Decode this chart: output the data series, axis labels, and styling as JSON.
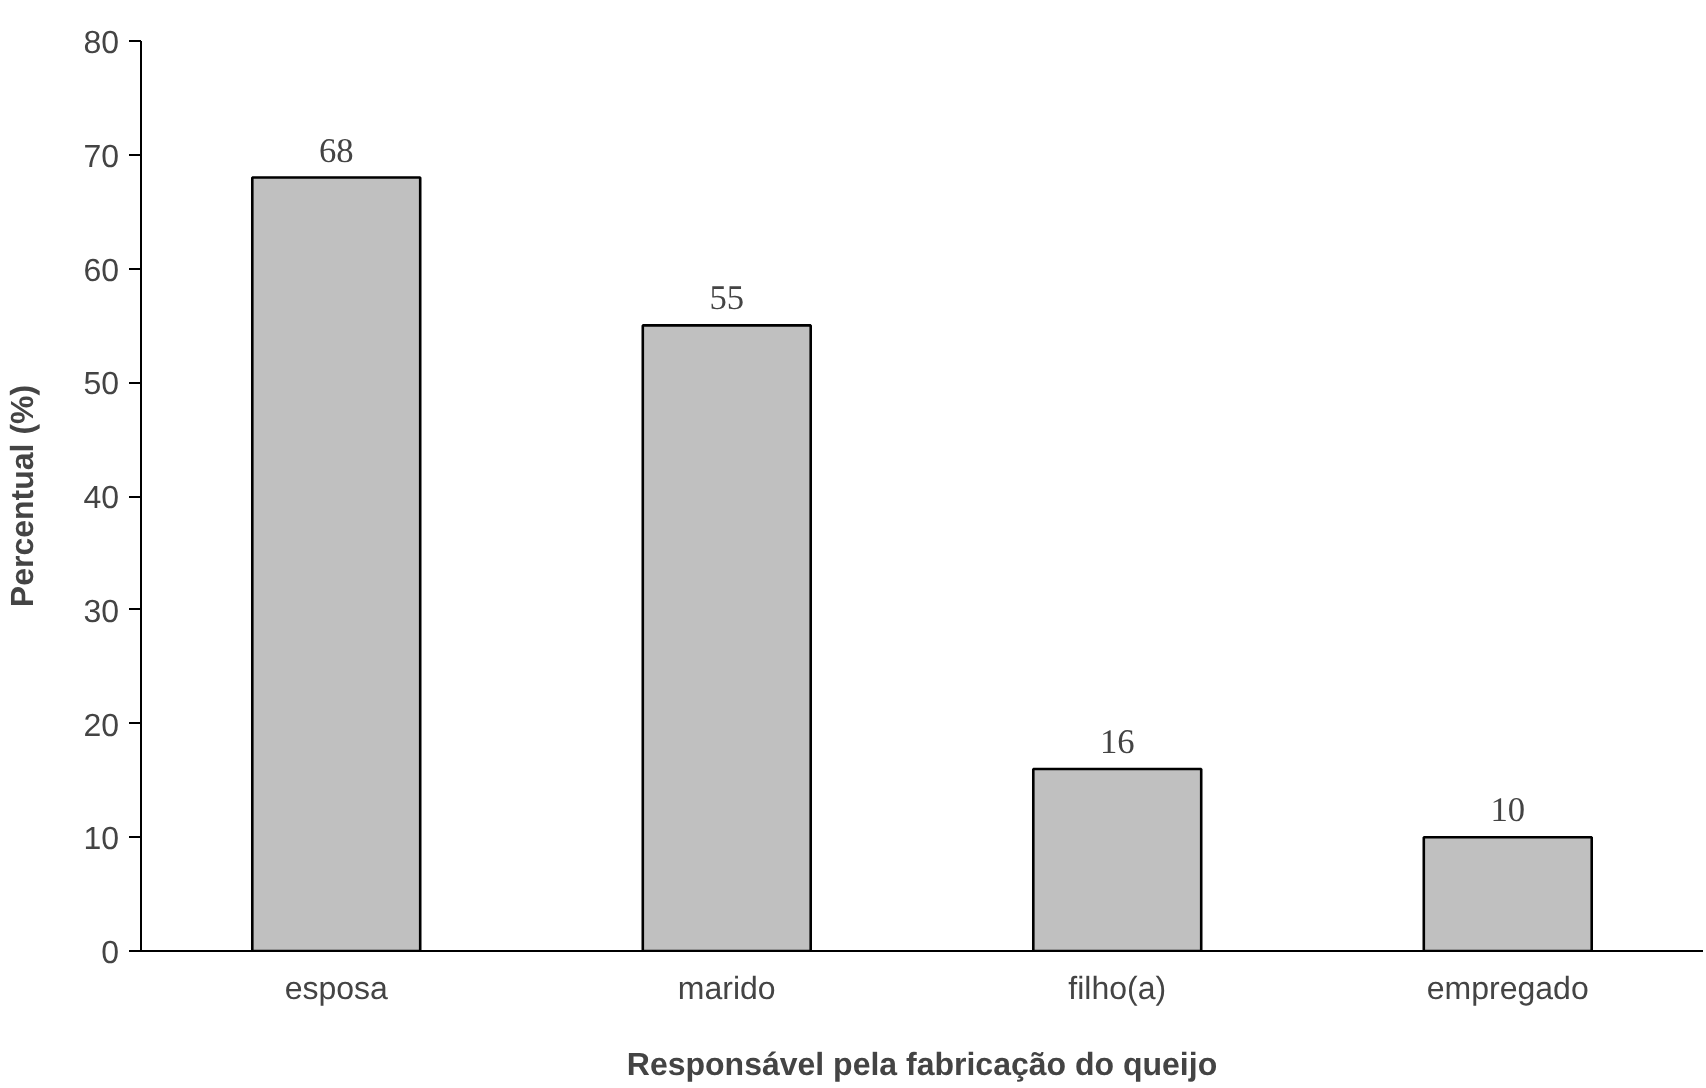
{
  "chart_data": {
    "type": "bar",
    "xlabel": "Responsável pela fabricação do queijo",
    "ylabel": "Percentual (%)",
    "categories": [
      "esposa",
      "marido",
      "filho(a)",
      "empregado"
    ],
    "values": [
      68,
      55,
      16,
      10
    ],
    "color": "#c0c0c0",
    "ylim": [
      0,
      80
    ],
    "yticks": [
      0,
      10,
      20,
      30,
      40,
      50,
      60,
      70,
      80
    ],
    "grid": false,
    "data_labels": true
  }
}
